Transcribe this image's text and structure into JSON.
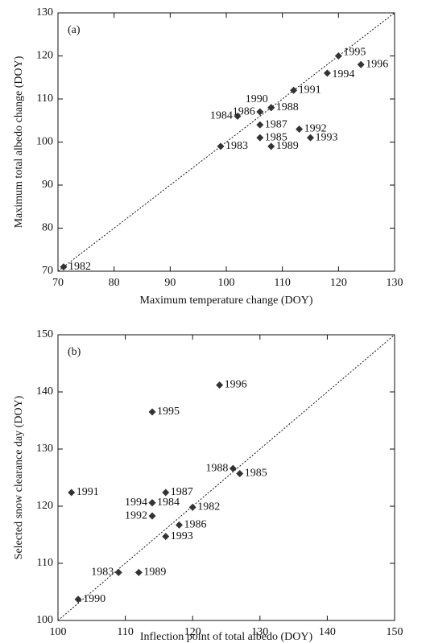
{
  "chart_data": [
    {
      "type": "scatter",
      "panel_label": "(a)",
      "xlabel": "Maximum temperature change (DOY)",
      "ylabel": "Maximum total albedo change (DOY)",
      "xlim": [
        70,
        130
      ],
      "ylim": [
        70,
        130
      ],
      "xticks": [
        70,
        80,
        90,
        100,
        110,
        120,
        130
      ],
      "yticks": [
        70,
        80,
        90,
        100,
        110,
        120,
        130
      ],
      "color": "#333333",
      "reference_line": "1:1",
      "labels": [
        "1982",
        "1983",
        "1984",
        "1985",
        "1986",
        "1987",
        "1988",
        "1989",
        "1990",
        "1991",
        "1992",
        "1993",
        "1994",
        "1995",
        "1996"
      ],
      "x": [
        71,
        99,
        102,
        106,
        106,
        106,
        108,
        108,
        108,
        112,
        113,
        115,
        118,
        120,
        124
      ],
      "y": [
        71,
        99,
        106,
        101,
        107,
        104,
        108,
        99,
        108,
        112,
        103,
        101,
        116,
        120,
        118
      ]
    },
    {
      "type": "scatter",
      "panel_label": "(b)",
      "xlabel": "Inflection point of total albedo (DOY)",
      "ylabel": "Selected snow clearance day (DOY)",
      "xlim": [
        100,
        150
      ],
      "ylim": [
        100,
        150
      ],
      "xticks": [
        100,
        110,
        120,
        130,
        140,
        150
      ],
      "yticks": [
        100,
        110,
        120,
        130,
        140,
        150
      ],
      "color": "#333333",
      "reference_line": "1:1",
      "labels": [
        "1982",
        "1983",
        "1984",
        "1985",
        "1986",
        "1987",
        "1988",
        "1989",
        "1990",
        "1991",
        "1992",
        "1993",
        "1994",
        "1995",
        "1996"
      ],
      "x": [
        120,
        109,
        114,
        127,
        118,
        116,
        126,
        112,
        103,
        102,
        114,
        116,
        114,
        114,
        124
      ],
      "y": [
        119.8,
        108.4,
        120.6,
        125.7,
        116.7,
        122.4,
        126.6,
        108.4,
        103.7,
        122.4,
        118.3,
        114.7,
        120.6,
        136.5,
        141.2
      ]
    }
  ]
}
